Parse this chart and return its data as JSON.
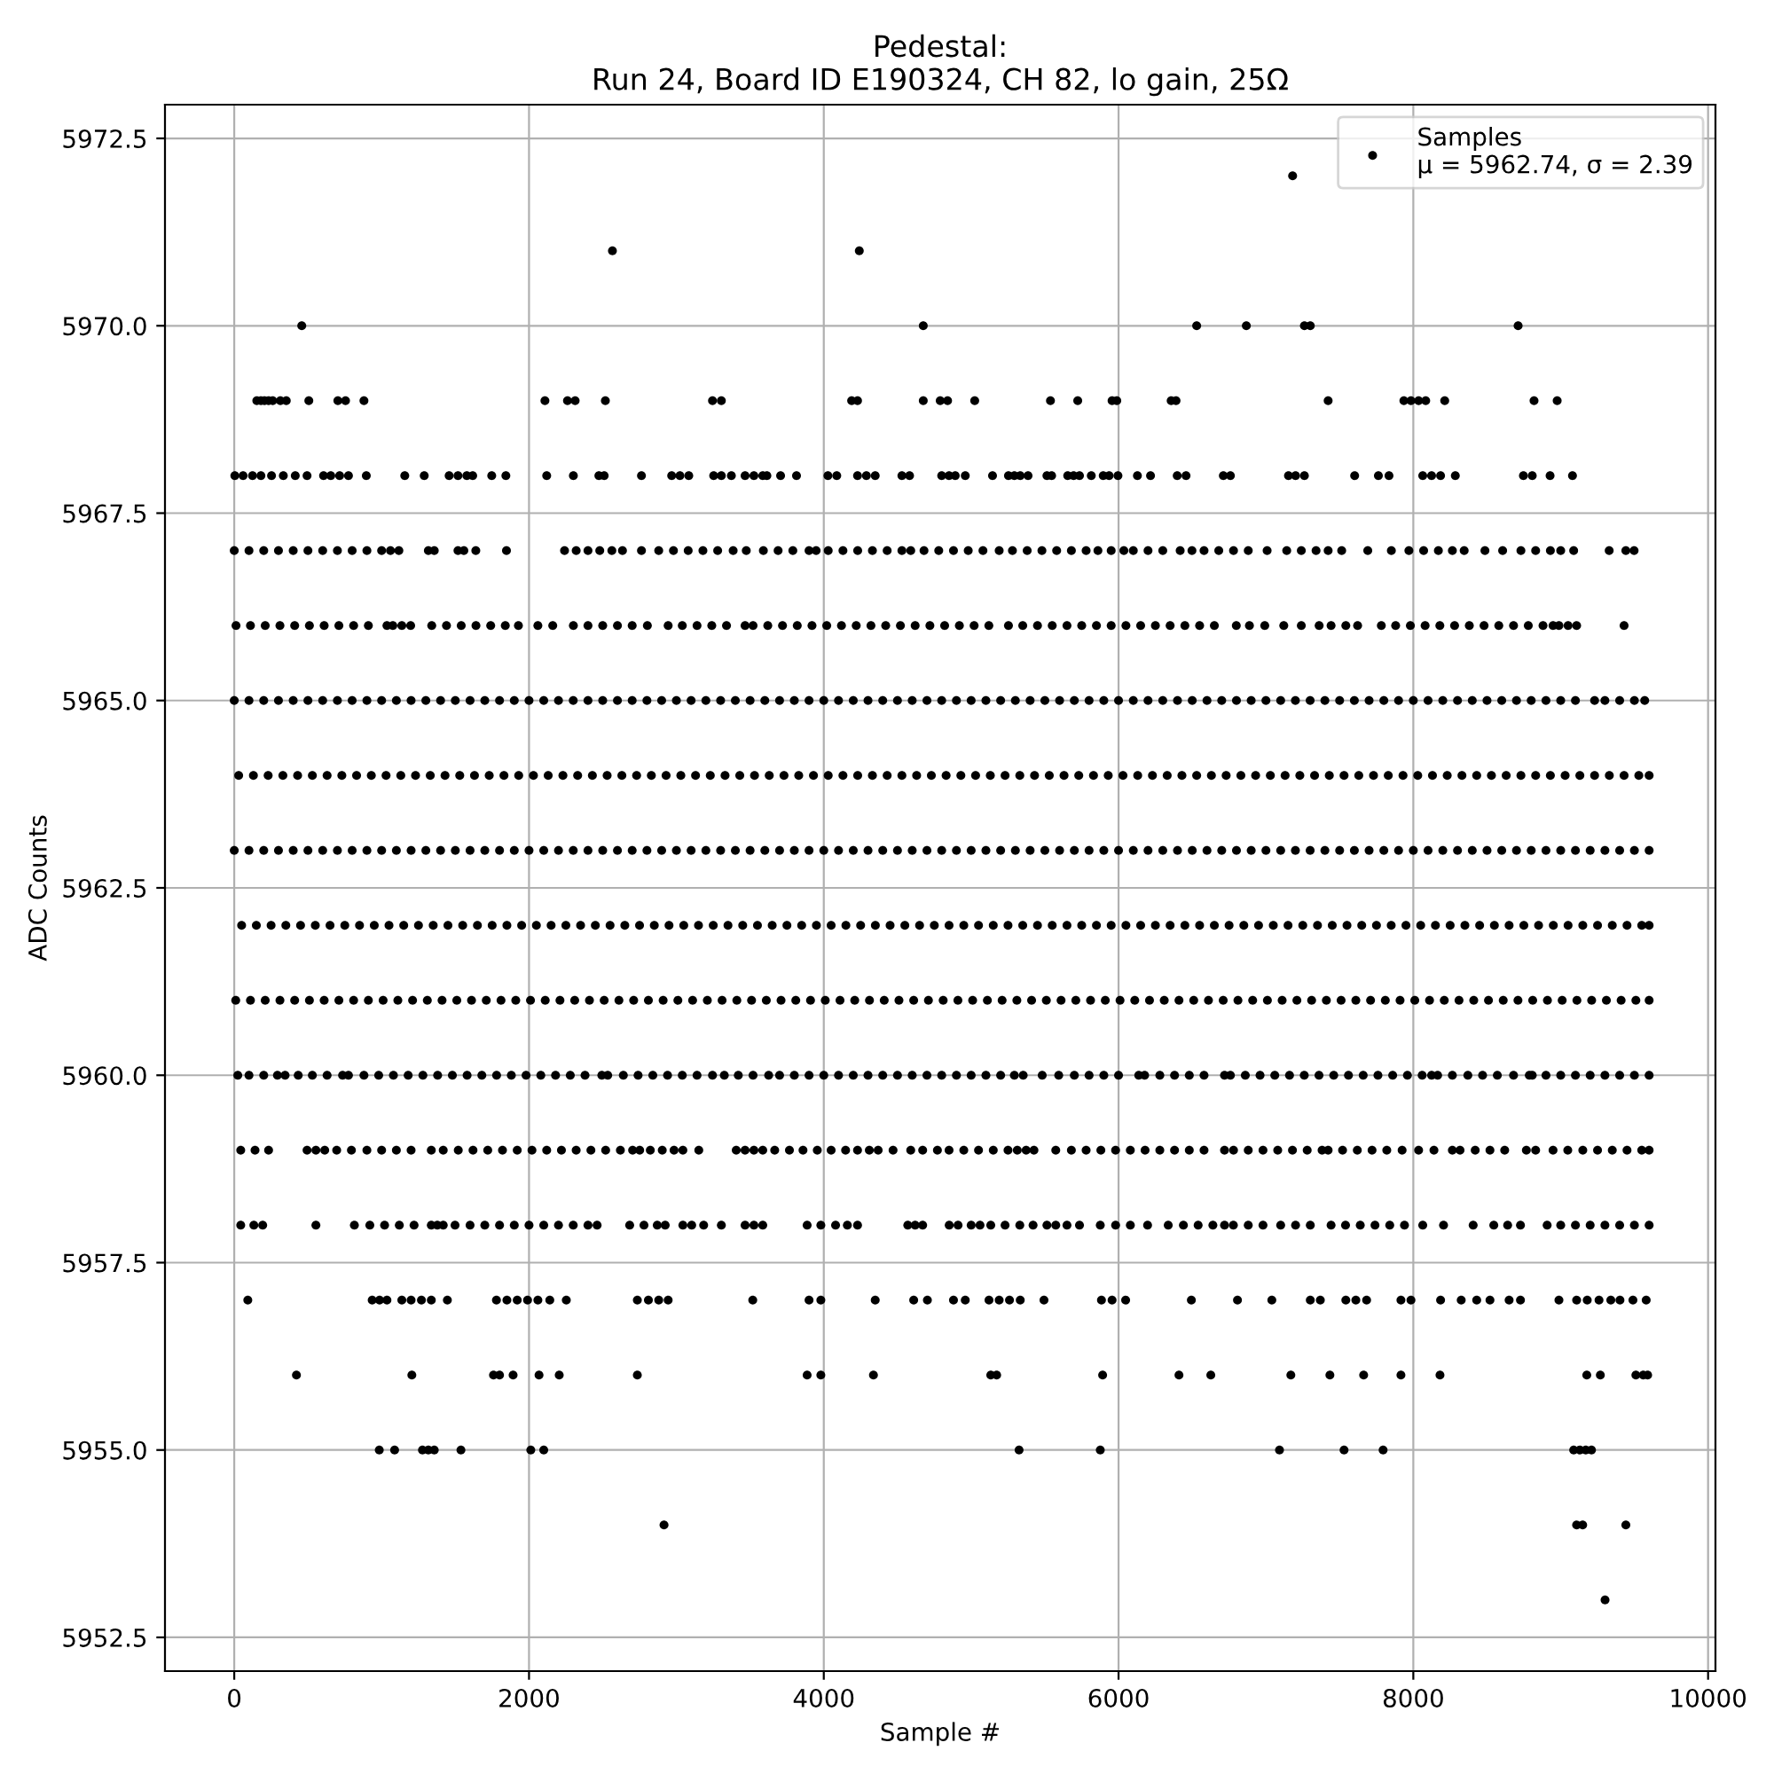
{
  "chart_data": {
    "type": "scatter",
    "title": "Pedestal:\nRun 24, Board ID E190324, CH 82, lo gain, 25Ω",
    "xlabel": "Sample #",
    "ylabel": "ADC Counts",
    "xlim": [
      -470,
      10050
    ],
    "ylim": [
      5952.05,
      5972.95
    ],
    "xticks": [
      0,
      2000,
      4000,
      6000,
      8000,
      10000
    ],
    "yticks": [
      5952.5,
      {
        "value": 5955,
        "label": "5955.0"
      },
      5957.5,
      {
        "value": 5960,
        "label": "5960.0"
      },
      5962.5,
      {
        "value": 5965,
        "label": "5965.0"
      },
      5967.5,
      {
        "value": 5970,
        "label": "5970.0"
      },
      5972.5
    ],
    "grid": true,
    "legend": "top right",
    "marker": "circle",
    "series": [
      {
        "name": "Samples\nμ = 5962.74, σ = 2.39",
        "color": "#000000",
        "x": [
          7181,
          2566,
          4241,
          458,
          4675,
          6530,
          6867,
          7261,
          7301,
          8711,
          153,
          181,
          205,
          233,
          261,
          313,
          353,
          506,
          703,
          755,
          880,
          2108,
          2261,
          2313,
          2518,
          3245,
          3305,
          4189,
          4229,
          4675,
          4790,
          4840,
          5024,
          5538,
          5723,
          5956,
          5988,
          6357,
          6390,
          7422,
          7936,
          7984,
          8036,
          8084,
          8213,
          8819,
          8976,
          4,
          60,
          124,
          181,
          253,
          333,
          414,
          494,
          606,
          655,
          715,
          775,
          896,
          1157,
          1289,
          1458,
          1518,
          1578,
          1618,
          1747,
          1843,
          2120,
          2301,
          2474,
          2510,
          2763,
          2968,
          3024,
          3084,
          3253,
          3305,
          3373,
          3466,
          3526,
          3586,
          3614,
          3707,
          3815,
          4028,
          4088,
          4229,
          4289,
          4349,
          4530,
          4582,
          4800,
          4850,
          4892,
          4960,
          5145,
          5253,
          5293,
          5333,
          5386,
          5514,
          5546,
          5655,
          5695,
          5735,
          5815,
          5896,
          5936,
          5996,
          6128,
          6217,
          6398,
          6458,
          6711,
          6759,
          7153,
          7201,
          7261,
          7602,
          7763,
          7835,
          8064,
          8124,
          8185,
          8285,
          8747,
          8807,
          8928,
          9080,
          0,
          100,
          200,
          300,
          400,
          500,
          600,
          700,
          800,
          900,
          1000,
          1060,
          1117,
          1317,
          1357,
          1518,
          1558,
          1639,
          1847,
          2241,
          2320,
          2400,
          2480,
          2562,
          2634,
          2763,
          2880,
          2980,
          3080,
          3180,
          3280,
          3385,
          3474,
          3590,
          3690,
          3790,
          3900,
          3948,
          4030,
          4130,
          4230,
          4330,
          4430,
          4530,
          4590,
          4680,
          4780,
          4880,
          4980,
          5080,
          5190,
          5280,
          5380,
          5480,
          5580,
          5680,
          5780,
          5860,
          5950,
          6036,
          6100,
          6200,
          6300,
          6418,
          6498,
          6580,
          6680,
          6780,
          6880,
          7008,
          7141,
          7240,
          7340,
          7422,
          7514,
          7691,
          7851,
          7970,
          8070,
          8170,
          8265,
          8345,
          8486,
          8606,
          8730,
          8830,
          8930,
          9000,
          9088,
          9329,
          9442,
          9498,
          12,
          110,
          210,
          310,
          410,
          510,
          610,
          710,
          810,
          910,
          1036,
          1076,
          1137,
          1197,
          1340,
          1440,
          1540,
          1640,
          1740,
          1839,
          1928,
          2060,
          2161,
          2301,
          2400,
          2500,
          2600,
          2700,
          2803,
          2944,
          3040,
          3140,
          3240,
          3340,
          3466,
          3520,
          3620,
          3720,
          3820,
          3920,
          4020,
          4120,
          4220,
          4320,
          4420,
          4520,
          4620,
          4720,
          4820,
          4920,
          5020,
          5120,
          5253,
          5350,
          5450,
          5550,
          5650,
          5750,
          5850,
          5950,
          6050,
          6150,
          6250,
          6350,
          6450,
          6550,
          6650,
          6799,
          6888,
          6992,
          7121,
          7240,
          7361,
          7442,
          7542,
          7622,
          7783,
          7880,
          7980,
          8080,
          8180,
          8280,
          8380,
          8480,
          8580,
          8680,
          8780,
          8880,
          8948,
          8988,
          9050,
          9108,
          9430,
          0,
          100,
          200,
          300,
          400,
          500,
          600,
          700,
          800,
          900,
          1000,
          1100,
          1200,
          1300,
          1400,
          1500,
          1600,
          1700,
          1800,
          1900,
          2000,
          2100,
          2200,
          2300,
          2400,
          2500,
          2600,
          2700,
          2800,
          2900,
          3000,
          3100,
          3200,
          3300,
          3400,
          3500,
          3600,
          3700,
          3800,
          3900,
          4000,
          4100,
          4200,
          4300,
          4400,
          4500,
          4600,
          4700,
          4800,
          4900,
          5000,
          5100,
          5200,
          5300,
          5400,
          5500,
          5600,
          5700,
          5800,
          5900,
          6000,
          6100,
          6200,
          6300,
          6400,
          6500,
          6600,
          6700,
          6800,
          6900,
          7000,
          7100,
          7200,
          7300,
          7400,
          7500,
          7600,
          7700,
          7800,
          7900,
          8000,
          8100,
          8200,
          8300,
          8400,
          8500,
          8600,
          8700,
          8800,
          8900,
          9000,
          9100,
          9230,
          9300,
          9400,
          9500,
          9570,
          30,
          130,
          230,
          330,
          430,
          530,
          630,
          730,
          830,
          930,
          1030,
          1130,
          1230,
          1330,
          1430,
          1530,
          1630,
          1730,
          1830,
          1930,
          2030,
          2130,
          2230,
          2330,
          2430,
          2530,
          2630,
          2730,
          2830,
          2930,
          3030,
          3130,
          3230,
          3330,
          3430,
          3530,
          3630,
          3730,
          3830,
          3930,
          4030,
          4130,
          4230,
          4330,
          4430,
          4530,
          4630,
          4730,
          4830,
          4930,
          5030,
          5130,
          5230,
          5330,
          5430,
          5530,
          5630,
          5730,
          5830,
          5930,
          6030,
          6130,
          6230,
          6330,
          6430,
          6530,
          6630,
          6730,
          6830,
          6930,
          7030,
          7130,
          7230,
          7330,
          7430,
          7530,
          7630,
          7730,
          7830,
          7930,
          8030,
          8130,
          8230,
          8330,
          8430,
          8530,
          8630,
          8730,
          8830,
          8930,
          9030,
          9130,
          9230,
          9330,
          9430,
          9530,
          9600,
          0,
          100,
          200,
          300,
          400,
          500,
          600,
          700,
          800,
          900,
          1000,
          1100,
          1200,
          1300,
          1400,
          1500,
          1600,
          1700,
          1800,
          1900,
          2000,
          2100,
          2200,
          2300,
          2400,
          2500,
          2600,
          2700,
          2800,
          2900,
          3000,
          3100,
          3200,
          3300,
          3400,
          3500,
          3600,
          3700,
          3800,
          3900,
          4000,
          4100,
          4200,
          4300,
          4400,
          4500,
          4600,
          4700,
          4800,
          4900,
          5000,
          5100,
          5200,
          5300,
          5400,
          5500,
          5600,
          5700,
          5800,
          5900,
          6000,
          6100,
          6200,
          6300,
          6400,
          6500,
          6600,
          6700,
          6800,
          6900,
          7000,
          7100,
          7200,
          7300,
          7400,
          7500,
          7600,
          7700,
          7800,
          7900,
          8000,
          8100,
          8200,
          8300,
          8400,
          8500,
          8600,
          8700,
          8800,
          8900,
          9000,
          9100,
          9200,
          9300,
          9400,
          9500,
          9600,
          50,
          150,
          250,
          350,
          450,
          550,
          650,
          750,
          850,
          950,
          1050,
          1150,
          1250,
          1350,
          1450,
          1550,
          1650,
          1750,
          1850,
          1950,
          2050,
          2150,
          2250,
          2350,
          2450,
          2550,
          2650,
          2750,
          2850,
          2950,
          3050,
          3150,
          3250,
          3350,
          3450,
          3550,
          3650,
          3750,
          3850,
          3950,
          4050,
          4150,
          4250,
          4350,
          4450,
          4550,
          4650,
          4750,
          4850,
          4950,
          5050,
          5150,
          5250,
          5350,
          5450,
          5550,
          5650,
          5750,
          5850,
          5950,
          6050,
          6150,
          6250,
          6350,
          6450,
          6550,
          6650,
          6750,
          6850,
          6950,
          7050,
          7150,
          7250,
          7350,
          7450,
          7550,
          7650,
          7750,
          7850,
          7950,
          8050,
          8150,
          8250,
          8350,
          8450,
          8550,
          8650,
          8750,
          8850,
          8950,
          9050,
          9150,
          9250,
          9350,
          9450,
          9550,
          9600,
          10,
          110,
          210,
          310,
          410,
          510,
          610,
          710,
          810,
          910,
          1010,
          1110,
          1210,
          1310,
          1410,
          1510,
          1610,
          1710,
          1810,
          1910,
          2010,
          2110,
          2210,
          2310,
          2410,
          2510,
          2610,
          2710,
          2810,
          2910,
          3010,
          3110,
          3210,
          3310,
          3410,
          3510,
          3610,
          3710,
          3810,
          3910,
          4010,
          4110,
          4210,
          4310,
          4410,
          4510,
          4610,
          4710,
          4810,
          4910,
          5010,
          5110,
          5210,
          5310,
          5410,
          5510,
          5610,
          5710,
          5810,
          5910,
          6010,
          6110,
          6210,
          6310,
          6410,
          6510,
          6610,
          6710,
          6810,
          6910,
          7010,
          7110,
          7210,
          7310,
          7410,
          7510,
          7610,
          7710,
          7810,
          7910,
          8010,
          8110,
          8210,
          8310,
          8410,
          8510,
          8610,
          8710,
          8810,
          8910,
          9010,
          9110,
          9210,
          9310,
          9410,
          9510,
          9600,
          24,
          100,
          200,
          293,
          345,
          434,
          530,
          630,
          735,
          775,
          880,
          980,
          1080,
          1180,
          1280,
          1380,
          1480,
          1580,
          1680,
          1780,
          1880,
          1980,
          2080,
          2180,
          2280,
          2380,
          2494,
          2534,
          2640,
          2740,
          2840,
          2940,
          3040,
          3140,
          3245,
          3325,
          3420,
          3520,
          3626,
          3700,
          3800,
          3900,
          4000,
          4100,
          4200,
          4300,
          4400,
          4500,
          4600,
          4700,
          4800,
          4900,
          5000,
          5100,
          5200,
          5293,
          5353,
          5482,
          5594,
          5700,
          5800,
          5900,
          6000,
          6137,
          6177,
          6280,
          6380,
          6480,
          6580,
          6719,
          6759,
          6860,
          6960,
          7060,
          7160,
          7260,
          7360,
          7460,
          7560,
          7660,
          7760,
          7860,
          7960,
          8060,
          8124,
          8165,
          8265,
          8370,
          8470,
          8570,
          8680,
          8787,
          8807,
          8900,
          9000,
          9100,
          9200,
          9300,
          9400,
          9500,
          9600,
          44,
          141,
          233,
          494,
          554,
          614,
          695,
          795,
          900,
          1000,
          1100,
          1200,
          1337,
          1418,
          1520,
          1620,
          1720,
          1820,
          1920,
          2020,
          2120,
          2220,
          2320,
          2420,
          2520,
          2620,
          2703,
          2751,
          2823,
          2904,
          2984,
          3044,
          3152,
          3406,
          3466,
          3526,
          3586,
          3667,
          3767,
          3859,
          3956,
          4050,
          4148,
          4229,
          4309,
          4369,
          4470,
          4590,
          4671,
          4771,
          4850,
          4950,
          5050,
          5150,
          5250,
          5313,
          5373,
          5426,
          5574,
          5680,
          5780,
          5880,
          5980,
          6080,
          6180,
          6280,
          6380,
          6480,
          6580,
          6719,
          6780,
          6880,
          6980,
          7080,
          7180,
          7280,
          7381,
          7422,
          7520,
          7620,
          7720,
          7820,
          7924,
          8036,
          8140,
          8265,
          8317,
          8420,
          8520,
          8620,
          8767,
          8830,
          8948,
          9048,
          9150,
          9250,
          9350,
          9450,
          9550,
          9600,
          44,
          133,
          193,
          554,
          815,
          920,
          1020,
          1120,
          1220,
          1337,
          1378,
          1418,
          1498,
          1600,
          1700,
          1800,
          1900,
          2000,
          2100,
          2200,
          2300,
          2400,
          2462,
          2683,
          2780,
          2870,
          2924,
          3044,
          3104,
          3185,
          3305,
          3466,
          3526,
          3586,
          3887,
          3980,
          4080,
          4160,
          4229,
          4570,
          4620,
          4671,
          4851,
          4911,
          5000,
          5060,
          5133,
          5230,
          5330,
          5420,
          5514,
          5574,
          5650,
          5735,
          5876,
          5980,
          6080,
          6197,
          6337,
          6440,
          6540,
          6640,
          6719,
          6779,
          6880,
          6980,
          7100,
          7201,
          7301,
          7442,
          7540,
          7640,
          7740,
          7840,
          7940,
          8064,
          8205,
          8406,
          8546,
          8640,
          8727,
          8908,
          9000,
          9100,
          9200,
          9300,
          9400,
          9500,
          9600,
          92,
          936,
          986,
          1036,
          1137,
          1200,
          1270,
          1337,
          1446,
          1779,
          1850,
          1920,
          1990,
          2060,
          2141,
          2253,
          2735,
          2810,
          2880,
          2944,
          3518,
          3900,
          3980,
          4349,
          4610,
          4703,
          4880,
          4960,
          5121,
          5190,
          5260,
          5333,
          5494,
          5884,
          5956,
          6048,
          6494,
          6807,
          7040,
          7301,
          7369,
          7542,
          7610,
          7683,
          7916,
          7984,
          8185,
          8325,
          8430,
          8520,
          8650,
          8727,
          8988,
          9108,
          9180,
          9260,
          9340,
          9402,
          9490,
          9580,
          422,
          1205,
          1759,
          1800,
          1892,
          2068,
          2205,
          2735,
          3887,
          3980,
          4337,
          5133,
          5173,
          5892,
          6410,
          6626,
          7169,
          7434,
          7663,
          7916,
          8181,
          9177,
          9269,
          9510,
          9560,
          9590,
          984,
          1088,
          1277,
          1317,
          1357,
          1538,
          2012,
          2100,
          5325,
          5876,
          7092,
          7530,
          7795,
          9088,
          9130,
          9170,
          9209,
          2916,
          9108,
          9149,
          9442,
          9301
        ],
        "values": [
          5972,
          5971,
          5971,
          5970,
          5970,
          5970,
          5970,
          5970,
          5970,
          5970,
          5969,
          5969,
          5969,
          5969,
          5969,
          5969,
          5969,
          5969,
          5969,
          5969,
          5969,
          5969,
          5969,
          5969,
          5969,
          5969,
          5969,
          5969,
          5969,
          5969,
          5969,
          5969,
          5969,
          5969,
          5969,
          5969,
          5969,
          5969,
          5969,
          5969,
          5969,
          5969,
          5969,
          5969,
          5969,
          5969,
          5969,
          5968,
          5968,
          5968,
          5968,
          5968,
          5968,
          5968,
          5968,
          5968,
          5968,
          5968,
          5968,
          5968,
          5968,
          5968,
          5968,
          5968,
          5968,
          5968,
          5968,
          5968,
          5968,
          5968,
          5968,
          5968,
          5968,
          5968,
          5968,
          5968,
          5968,
          5968,
          5968,
          5968,
          5968,
          5968,
          5968,
          5968,
          5968,
          5968,
          5968,
          5968,
          5968,
          5968,
          5968,
          5968,
          5968,
          5968,
          5968,
          5968,
          5968,
          5968,
          5968,
          5968,
          5968,
          5968,
          5968,
          5968,
          5968,
          5968,
          5968,
          5968,
          5968,
          5968,
          5968,
          5968,
          5968,
          5968,
          5968,
          5968,
          5968,
          5968,
          5968,
          5968,
          5968,
          5968,
          5968,
          5968,
          5968,
          5968,
          5968,
          5968,
          5968,
          5968,
          5967,
          5967,
          5967,
          5967,
          5967,
          5967,
          5967,
          5967,
          5967,
          5967,
          5967,
          5967,
          5967,
          5967,
          5967,
          5967,
          5967,
          5967,
          5967,
          5967,
          5967,
          5967,
          5967,
          5967,
          5967,
          5967,
          5967,
          5967,
          5967,
          5967,
          5967,
          5967,
          5967,
          5967,
          5967,
          5967,
          5967,
          5967,
          5967,
          5967,
          5967,
          5967,
          5967,
          5967,
          5967,
          5967,
          5967,
          5967,
          5967,
          5967,
          5967,
          5967,
          5967,
          5967,
          5967,
          5967,
          5967,
          5967,
          5967,
          5967,
          5967,
          5967,
          5967,
          5967,
          5967,
          5967,
          5967,
          5967,
          5967,
          5967,
          5967,
          5967,
          5967,
          5967,
          5967,
          5967,
          5967,
          5967,
          5967,
          5967,
          5967,
          5967,
          5967,
          5967,
          5967,
          5967,
          5967,
          5967,
          5967,
          5967,
          5967,
          5967,
          5966,
          5966,
          5966,
          5966,
          5966,
          5966,
          5966,
          5966,
          5966,
          5966,
          5966,
          5966,
          5966,
          5966,
          5966,
          5966,
          5966,
          5966,
          5966,
          5966,
          5966,
          5966,
          5966,
          5966,
          5966,
          5966,
          5966,
          5966,
          5966,
          5966,
          5966,
          5966,
          5966,
          5966,
          5966,
          5966,
          5966,
          5966,
          5966,
          5966,
          5966,
          5966,
          5966,
          5966,
          5966,
          5966,
          5966,
          5966,
          5966,
          5966,
          5966,
          5966,
          5966,
          5966,
          5966,
          5966,
          5966,
          5966,
          5966,
          5966,
          5966,
          5966,
          5966,
          5966,
          5966,
          5966,
          5966,
          5966,
          5966,
          5966,
          5966,
          5966,
          5966,
          5966,
          5966,
          5966,
          5966,
          5966,
          5966,
          5966,
          5966,
          5966,
          5966,
          5966,
          5966,
          5966,
          5966,
          5966,
          5966,
          5966,
          5966,
          5966,
          5966,
          5965,
          5965,
          5965,
          5965,
          5965,
          5965,
          5965,
          5965,
          5965,
          5965,
          5965,
          5965,
          5965,
          5965,
          5965,
          5965,
          5965,
          5965,
          5965,
          5965,
          5965,
          5965,
          5965,
          5965,
          5965,
          5965,
          5965,
          5965,
          5965,
          5965,
          5965,
          5965,
          5965,
          5965,
          5965,
          5965,
          5965,
          5965,
          5965,
          5965,
          5965,
          5965,
          5965,
          5965,
          5965,
          5965,
          5965,
          5965,
          5965,
          5965,
          5965,
          5965,
          5965,
          5965,
          5965,
          5965,
          5965,
          5965,
          5965,
          5965,
          5965,
          5965,
          5965,
          5965,
          5965,
          5965,
          5965,
          5965,
          5965,
          5965,
          5965,
          5965,
          5965,
          5965,
          5965,
          5965,
          5965,
          5965,
          5965,
          5965,
          5965,
          5965,
          5965,
          5965,
          5965,
          5965,
          5965,
          5965,
          5965,
          5965,
          5965,
          5965,
          5965,
          5965,
          5965,
          5965,
          5965,
          5964,
          5964,
          5964,
          5964,
          5964,
          5964,
          5964,
          5964,
          5964,
          5964,
          5964,
          5964,
          5964,
          5964,
          5964,
          5964,
          5964,
          5964,
          5964,
          5964,
          5964,
          5964,
          5964,
          5964,
          5964,
          5964,
          5964,
          5964,
          5964,
          5964,
          5964,
          5964,
          5964,
          5964,
          5964,
          5964,
          5964,
          5964,
          5964,
          5964,
          5964,
          5964,
          5964,
          5964,
          5964,
          5964,
          5964,
          5964,
          5964,
          5964,
          5964,
          5964,
          5964,
          5964,
          5964,
          5964,
          5964,
          5964,
          5964,
          5964,
          5964,
          5964,
          5964,
          5964,
          5964,
          5964,
          5964,
          5964,
          5964,
          5964,
          5964,
          5964,
          5964,
          5964,
          5964,
          5964,
          5964,
          5964,
          5964,
          5964,
          5964,
          5964,
          5964,
          5964,
          5964,
          5964,
          5964,
          5964,
          5964,
          5964,
          5964,
          5964,
          5964,
          5964,
          5964,
          5964,
          5964,
          5963,
          5963,
          5963,
          5963,
          5963,
          5963,
          5963,
          5963,
          5963,
          5963,
          5963,
          5963,
          5963,
          5963,
          5963,
          5963,
          5963,
          5963,
          5963,
          5963,
          5963,
          5963,
          5963,
          5963,
          5963,
          5963,
          5963,
          5963,
          5963,
          5963,
          5963,
          5963,
          5963,
          5963,
          5963,
          5963,
          5963,
          5963,
          5963,
          5963,
          5963,
          5963,
          5963,
          5963,
          5963,
          5963,
          5963,
          5963,
          5963,
          5963,
          5963,
          5963,
          5963,
          5963,
          5963,
          5963,
          5963,
          5963,
          5963,
          5963,
          5963,
          5963,
          5963,
          5963,
          5963,
          5963,
          5963,
          5963,
          5963,
          5963,
          5963,
          5963,
          5963,
          5963,
          5963,
          5963,
          5963,
          5963,
          5963,
          5963,
          5963,
          5963,
          5963,
          5963,
          5963,
          5963,
          5963,
          5963,
          5963,
          5963,
          5963,
          5963,
          5963,
          5963,
          5963,
          5963,
          5963,
          5962,
          5962,
          5962,
          5962,
          5962,
          5962,
          5962,
          5962,
          5962,
          5962,
          5962,
          5962,
          5962,
          5962,
          5962,
          5962,
          5962,
          5962,
          5962,
          5962,
          5962,
          5962,
          5962,
          5962,
          5962,
          5962,
          5962,
          5962,
          5962,
          5962,
          5962,
          5962,
          5962,
          5962,
          5962,
          5962,
          5962,
          5962,
          5962,
          5962,
          5962,
          5962,
          5962,
          5962,
          5962,
          5962,
          5962,
          5962,
          5962,
          5962,
          5962,
          5962,
          5962,
          5962,
          5962,
          5962,
          5962,
          5962,
          5962,
          5962,
          5962,
          5962,
          5962,
          5962,
          5962,
          5962,
          5962,
          5962,
          5962,
          5962,
          5962,
          5962,
          5962,
          5962,
          5962,
          5962,
          5962,
          5962,
          5962,
          5962,
          5962,
          5962,
          5962,
          5962,
          5962,
          5962,
          5962,
          5962,
          5962,
          5962,
          5962,
          5962,
          5962,
          5962,
          5962,
          5962,
          5962,
          5961,
          5961,
          5961,
          5961,
          5961,
          5961,
          5961,
          5961,
          5961,
          5961,
          5961,
          5961,
          5961,
          5961,
          5961,
          5961,
          5961,
          5961,
          5961,
          5961,
          5961,
          5961,
          5961,
          5961,
          5961,
          5961,
          5961,
          5961,
          5961,
          5961,
          5961,
          5961,
          5961,
          5961,
          5961,
          5961,
          5961,
          5961,
          5961,
          5961,
          5961,
          5961,
          5961,
          5961,
          5961,
          5961,
          5961,
          5961,
          5961,
          5961,
          5961,
          5961,
          5961,
          5961,
          5961,
          5961,
          5961,
          5961,
          5961,
          5961,
          5961,
          5961,
          5961,
          5961,
          5961,
          5961,
          5961,
          5961,
          5961,
          5961,
          5961,
          5961,
          5961,
          5961,
          5961,
          5961,
          5961,
          5961,
          5961,
          5961,
          5961,
          5961,
          5961,
          5961,
          5961,
          5961,
          5961,
          5961,
          5961,
          5961,
          5961,
          5961,
          5961,
          5961,
          5961,
          5961,
          5961,
          5960,
          5960,
          5960,
          5960,
          5960,
          5960,
          5960,
          5960,
          5960,
          5960,
          5960,
          5960,
          5960,
          5960,
          5960,
          5960,
          5960,
          5960,
          5960,
          5960,
          5960,
          5960,
          5960,
          5960,
          5960,
          5960,
          5960,
          5960,
          5960,
          5960,
          5960,
          5960,
          5960,
          5960,
          5960,
          5960,
          5960,
          5960,
          5960,
          5960,
          5960,
          5960,
          5960,
          5960,
          5960,
          5960,
          5960,
          5960,
          5960,
          5960,
          5960,
          5960,
          5960,
          5960,
          5960,
          5960,
          5960,
          5960,
          5960,
          5960,
          5960,
          5960,
          5960,
          5960,
          5960,
          5960,
          5960,
          5960,
          5960,
          5960,
          5960,
          5960,
          5960,
          5960,
          5960,
          5960,
          5960,
          5960,
          5960,
          5960,
          5960,
          5960,
          5960,
          5960,
          5960,
          5960,
          5960,
          5960,
          5960,
          5960,
          5960,
          5960,
          5960,
          5960,
          5960,
          5960,
          5960,
          5960,
          5960,
          5960,
          5960,
          5959,
          5959,
          5959,
          5959,
          5959,
          5959,
          5959,
          5959,
          5959,
          5959,
          5959,
          5959,
          5959,
          5959,
          5959,
          5959,
          5959,
          5959,
          5959,
          5959,
          5959,
          5959,
          5959,
          5959,
          5959,
          5959,
          5959,
          5959,
          5959,
          5959,
          5959,
          5959,
          5959,
          5959,
          5959,
          5959,
          5959,
          5959,
          5959,
          5959,
          5959,
          5959,
          5959,
          5959,
          5959,
          5959,
          5959,
          5959,
          5959,
          5959,
          5959,
          5959,
          5959,
          5959,
          5959,
          5959,
          5959,
          5959,
          5959,
          5959,
          5959,
          5959,
          5959,
          5959,
          5959,
          5959,
          5959,
          5959,
          5959,
          5959,
          5959,
          5959,
          5959,
          5959,
          5959,
          5959,
          5959,
          5959,
          5959,
          5959,
          5959,
          5959,
          5959,
          5959,
          5959,
          5959,
          5959,
          5959,
          5959,
          5959,
          5959,
          5959,
          5959,
          5959,
          5959,
          5959,
          5959,
          5959,
          5959,
          5959,
          5958,
          5958,
          5958,
          5958,
          5958,
          5958,
          5958,
          5958,
          5958,
          5958,
          5958,
          5958,
          5958,
          5958,
          5958,
          5958,
          5958,
          5958,
          5958,
          5958,
          5958,
          5958,
          5958,
          5958,
          5958,
          5958,
          5958,
          5958,
          5958,
          5958,
          5958,
          5958,
          5958,
          5958,
          5958,
          5958,
          5958,
          5958,
          5958,
          5958,
          5958,
          5958,
          5958,
          5958,
          5958,
          5958,
          5958,
          5958,
          5958,
          5958,
          5958,
          5958,
          5958,
          5958,
          5958,
          5958,
          5958,
          5958,
          5958,
          5958,
          5958,
          5958,
          5958,
          5958,
          5958,
          5958,
          5958,
          5958,
          5958,
          5958,
          5958,
          5958,
          5958,
          5958,
          5958,
          5958,
          5958,
          5958,
          5958,
          5958,
          5958,
          5958,
          5958,
          5958,
          5958,
          5958,
          5958,
          5958,
          5958,
          5957,
          5957,
          5957,
          5957,
          5957,
          5957,
          5957,
          5957,
          5957,
          5957,
          5957,
          5957,
          5957,
          5957,
          5957,
          5957,
          5957,
          5957,
          5957,
          5957,
          5957,
          5957,
          5957,
          5957,
          5957,
          5957,
          5957,
          5957,
          5957,
          5957,
          5957,
          5957,
          5957,
          5957,
          5957,
          5957,
          5957,
          5957,
          5957,
          5957,
          5957,
          5957,
          5957,
          5957,
          5957,
          5957,
          5957,
          5957,
          5957,
          5957,
          5957,
          5957,
          5957,
          5957,
          5957,
          5957,
          5957,
          5957,
          5957,
          5957,
          5956,
          5956,
          5956,
          5956,
          5956,
          5956,
          5956,
          5956,
          5956,
          5956,
          5956,
          5956,
          5956,
          5956,
          5956,
          5956,
          5956,
          5956,
          5956,
          5956,
          5956,
          5956,
          5956,
          5956,
          5956,
          5956,
          5955,
          5955,
          5955,
          5955,
          5955,
          5955,
          5955,
          5955,
          5955,
          5955,
          5955,
          5955,
          5955,
          5955,
          5955,
          5955,
          5955,
          5954,
          5954,
          5954,
          5954,
          5953
        ]
      }
    ]
  }
}
